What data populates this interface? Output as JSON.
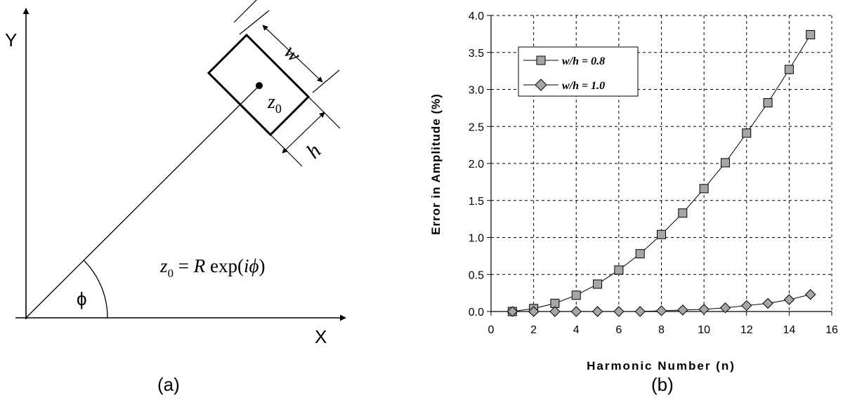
{
  "panel_a": {
    "label": "(a)",
    "axis_x": "X",
    "axis_y": "Y",
    "angle_symbol": "ϕ",
    "point_label": "z",
    "point_sub": "0",
    "width_label": "w",
    "height_label": "h",
    "equation": {
      "lhs": "z",
      "lhs_sub": "0",
      "rhs_a": " = ",
      "rhs_R": "R",
      "rhs_b": " exp(",
      "rhs_i": "i",
      "rhs_phi": "ϕ",
      "rhs_c": ")"
    }
  },
  "panel_b": {
    "label": "(b)"
  },
  "chart_data": {
    "type": "line",
    "title": "",
    "xlabel": "Harmonic Number (n)",
    "ylabel": "Error in Amplitude (%)",
    "xlim": [
      0,
      16
    ],
    "ylim": [
      0,
      4.0
    ],
    "x_ticks": [
      "0",
      "2",
      "4",
      "6",
      "8",
      "10",
      "12",
      "14",
      "16"
    ],
    "y_ticks": [
      "0.0",
      "0.5",
      "1.0",
      "1.5",
      "2.0",
      "2.5",
      "3.0",
      "3.5",
      "4.0"
    ],
    "grid": "dashed",
    "legend_position": "top-left",
    "x": [
      1,
      2,
      3,
      4,
      5,
      6,
      7,
      8,
      9,
      10,
      11,
      12,
      13,
      14,
      15
    ],
    "series": [
      {
        "name": "w/h = 0.8",
        "marker": "square",
        "values": [
          0.0,
          0.04,
          0.11,
          0.22,
          0.37,
          0.56,
          0.78,
          1.04,
          1.33,
          1.66,
          2.01,
          2.41,
          2.82,
          3.27,
          3.74
        ]
      },
      {
        "name": "w/h = 1.0",
        "marker": "diamond",
        "values": [
          0.0,
          0.0,
          0.0,
          0.0,
          0.0,
          0.0,
          0.0,
          0.01,
          0.02,
          0.03,
          0.05,
          0.08,
          0.11,
          0.16,
          0.23
        ]
      }
    ],
    "colors": {
      "marker_fill": "#a6a6a6",
      "line": "#000000",
      "grid": "#000000"
    }
  }
}
